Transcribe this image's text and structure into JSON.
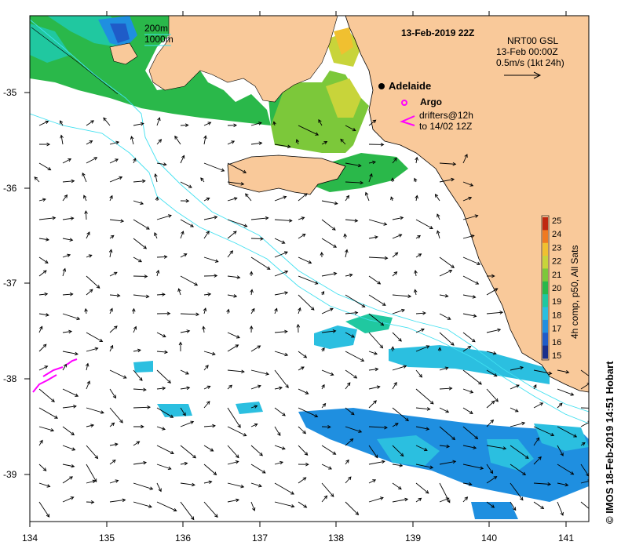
{
  "map": {
    "date_label": "13-Feb-2019 22Z",
    "city": "Adelaide",
    "argo_label": "Argo",
    "drifters_label_1": "drifters@12h",
    "drifters_label_2": "to 14/02 12Z",
    "contours": {
      "c200": "200m",
      "c1000": "1000m"
    },
    "current_legend": {
      "line1": "NRT00 GSL",
      "line2": "13-Feb 00:00Z",
      "line3": "0.5m/s (1kt 24h)"
    },
    "colorbar": {
      "title": "4h comp, p50, All Sats",
      "ticks": [
        "15",
        "16",
        "17",
        "18",
        "19",
        "20",
        "21",
        "22",
        "23",
        "24",
        "25"
      ],
      "colors": [
        "#1a2f8c",
        "#1f5cc8",
        "#1f8fe0",
        "#2bbfe0",
        "#20c8a0",
        "#2ab84a",
        "#7cc83a",
        "#c8d43a",
        "#f0c030",
        "#f07a20",
        "#c02810"
      ]
    },
    "x_ticks": [
      "134",
      "135",
      "136",
      "137",
      "138",
      "139",
      "140",
      "141"
    ],
    "y_ticks": [
      "-35",
      "-36",
      "-37",
      "-38",
      "-39"
    ],
    "credit": "© IMOS 18-Feb-2019 14:51 Hobart",
    "colors": {
      "land": "#f9c99a",
      "coast": "#000000",
      "contour": "#40e0f0",
      "drifter": "#ff00ff"
    }
  }
}
